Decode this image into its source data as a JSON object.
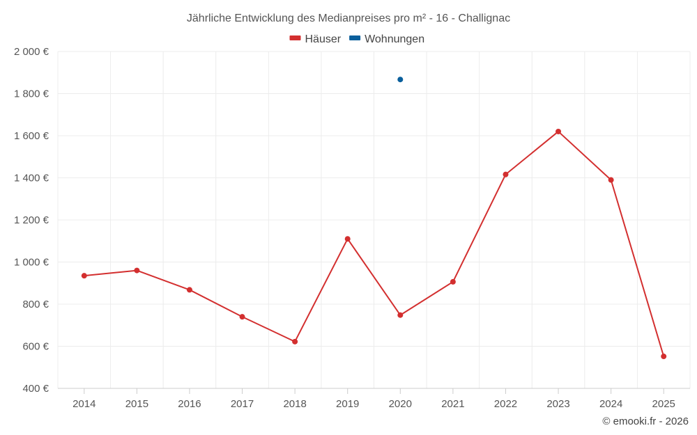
{
  "chart_data": {
    "type": "line",
    "title": "Jährliche Entwicklung des Medianpreises pro m² - 16 - Challignac",
    "categories": [
      "2014",
      "2015",
      "2016",
      "2017",
      "2018",
      "2019",
      "2020",
      "2021",
      "2022",
      "2023",
      "2024",
      "2025"
    ],
    "series": [
      {
        "name": "Häuser",
        "color": "#d32f2f",
        "values": [
          935,
          960,
          868,
          740,
          622,
          1110,
          748,
          906,
          1416,
          1620,
          1390,
          552
        ]
      },
      {
        "name": "Wohnungen",
        "color": "#0a5f9c",
        "values": [
          null,
          null,
          null,
          null,
          null,
          null,
          1867,
          null,
          null,
          null,
          null,
          null
        ]
      }
    ],
    "ylim": [
      400,
      2000
    ],
    "yticks": [
      400,
      600,
      800,
      1000,
      1200,
      1400,
      1600,
      1800,
      2000
    ],
    "ytick_labels": [
      "400 €",
      "600 €",
      "800 €",
      "1 000 €",
      "1 200 €",
      "1 400 €",
      "1 600 €",
      "1 800 €",
      "2 000 €"
    ],
    "xlabel": "",
    "ylabel": "",
    "legend_position": "top-center",
    "grid": true
  },
  "credit": "© emooki.fr - 2026"
}
